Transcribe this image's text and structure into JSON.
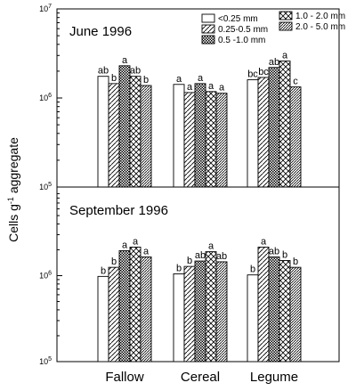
{
  "chart_data": [
    {
      "type": "bar",
      "title": "June 1996",
      "ylabel": "Cells g-1 aggregate",
      "yscale": "log",
      "ylim": [
        100000,
        10000000
      ],
      "y_ticks": [
        {
          "value": 100000,
          "mantissa": "10",
          "exponent": "5"
        },
        {
          "value": 1000000,
          "mantissa": "10",
          "exponent": "6"
        },
        {
          "value": 10000000,
          "mantissa": "10",
          "exponent": "7"
        }
      ],
      "categories": [
        "Fallow",
        "Cereal",
        "Legume"
      ],
      "series": [
        {
          "name": "<0.25 mm",
          "pattern": "none",
          "values": [
            1750000,
            1420000,
            1600000
          ],
          "letters": [
            "ab",
            "a",
            "bc"
          ]
        },
        {
          "name": "0.25-0.5 mm",
          "pattern": "diag-fwd",
          "values": [
            1450000,
            1150000,
            1700000
          ],
          "letters": [
            "b",
            "a",
            "bc"
          ]
        },
        {
          "name": "0.5 -1.0 mm",
          "pattern": "checker",
          "values": [
            2300000,
            1450000,
            2200000
          ],
          "letters": [
            "a",
            "a",
            "ab"
          ]
        },
        {
          "name": "1.0 - 2.0 mm",
          "pattern": "crosshatch",
          "values": [
            1750000,
            1180000,
            2600000
          ],
          "letters": [
            "ab",
            "a",
            "a"
          ]
        },
        {
          "name": "2.0 - 5.0 mm",
          "pattern": "diag-dense",
          "values": [
            1380000,
            1130000,
            1330000
          ],
          "letters": [
            "b",
            "a",
            "c"
          ]
        }
      ]
    },
    {
      "type": "bar",
      "title": "September 1996",
      "yscale": "log",
      "ylim": [
        100000,
        10000000
      ],
      "y_ticks": [
        {
          "value": 100000,
          "mantissa": "10",
          "exponent": "5"
        },
        {
          "value": 1000000,
          "mantissa": "10",
          "exponent": "6"
        }
      ],
      "categories": [
        "Fallow",
        "Cereal",
        "Legume"
      ],
      "series": [
        {
          "name": "<0.25 mm",
          "pattern": "none",
          "values": [
            980000,
            1050000,
            1020000
          ],
          "letters": [
            "b",
            "b",
            "b"
          ]
        },
        {
          "name": "0.25-0.5 mm",
          "pattern": "diag-fwd",
          "values": [
            1250000,
            1280000,
            2150000
          ],
          "letters": [
            "b",
            "b",
            "a"
          ]
        },
        {
          "name": "0.5 -1.0 mm",
          "pattern": "checker",
          "values": [
            1950000,
            1480000,
            1650000
          ],
          "letters": [
            "a",
            "ab",
            "ab"
          ]
        },
        {
          "name": "1.0 - 2.0 mm",
          "pattern": "crosshatch",
          "values": [
            2150000,
            1900000,
            1500000
          ],
          "letters": [
            "a",
            "a",
            "b"
          ]
        },
        {
          "name": "2.0 - 5.0 mm",
          "pattern": "diag-dense",
          "values": [
            1650000,
            1450000,
            1250000
          ],
          "letters": [
            "a",
            "ab",
            "b"
          ]
        }
      ]
    }
  ]
}
